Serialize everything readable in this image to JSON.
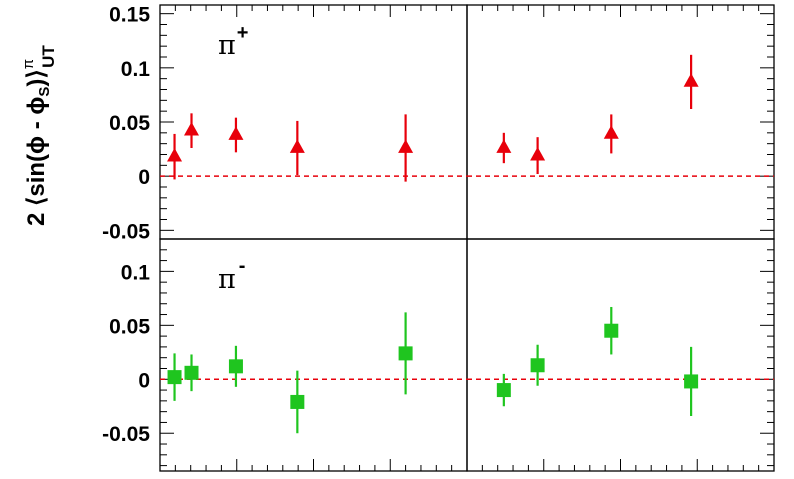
{
  "chart_data": {
    "type": "scatter",
    "ylabel": "2 ⟨sin(ϕ - ϕS)⟩πUT",
    "ylabel_parts": {
      "prefix": "2 ⟨sin(ϕ - ϕ",
      "sub": "S",
      "close": ")⟩",
      "sup": "π",
      "sub2": "UT"
    },
    "reference_line": {
      "y": 0,
      "style": "dashed",
      "color": "#e8000b"
    },
    "rows": [
      {
        "label": "π",
        "label_sup": "+",
        "marker": "triangle",
        "color": "#e8000b",
        "ylim": [
          -0.058,
          0.158
        ],
        "yticks": [
          {
            "value": 0.15,
            "label": "0.15"
          },
          {
            "value": 0.1,
            "label": "0.1"
          },
          {
            "value": 0.05,
            "label": "0.05"
          },
          {
            "value": 0,
            "label": "0"
          },
          {
            "value": -0.05,
            "label": "-0.05"
          }
        ]
      },
      {
        "label": "π",
        "label_sup": "-",
        "marker": "square",
        "color": "#1fc51f",
        "ylim": [
          -0.085,
          0.13
        ],
        "yticks": [
          {
            "value": 0.1,
            "label": "0.1"
          },
          {
            "value": 0.05,
            "label": "0.05"
          },
          {
            "value": 0,
            "label": "0"
          },
          {
            "value": -0.05,
            "label": "-0.05"
          }
        ]
      }
    ],
    "panels": [
      {
        "row": 0,
        "col": 0,
        "points": [
          {
            "x": 0.09,
            "y": 0.018,
            "err": 0.021
          },
          {
            "x": 0.195,
            "y": 0.042,
            "err": 0.016
          },
          {
            "x": 0.47,
            "y": 0.038,
            "err": 0.016
          },
          {
            "x": 0.85,
            "y": 0.026,
            "err": 0.025
          },
          {
            "x": 1.52,
            "y": 0.026,
            "err": 0.031
          }
        ]
      },
      {
        "row": 0,
        "col": 1,
        "points": [
          {
            "x": 0.12,
            "y": 0.026,
            "err": 0.014
          },
          {
            "x": 0.23,
            "y": 0.019,
            "err": 0.017
          },
          {
            "x": 0.47,
            "y": 0.039,
            "err": 0.018
          },
          {
            "x": 0.73,
            "y": 0.087,
            "err": 0.025
          }
        ]
      },
      {
        "row": 1,
        "col": 0,
        "points": [
          {
            "x": 0.09,
            "y": 0.002,
            "err": 0.022
          },
          {
            "x": 0.195,
            "y": 0.006,
            "err": 0.017
          },
          {
            "x": 0.47,
            "y": 0.012,
            "err": 0.019
          },
          {
            "x": 0.85,
            "y": -0.021,
            "err": 0.029
          },
          {
            "x": 1.52,
            "y": 0.024,
            "err": 0.038
          }
        ]
      },
      {
        "row": 1,
        "col": 1,
        "points": [
          {
            "x": 0.12,
            "y": -0.01,
            "err": 0.015
          },
          {
            "x": 0.23,
            "y": 0.013,
            "err": 0.019
          },
          {
            "x": 0.47,
            "y": 0.045,
            "err": 0.022
          },
          {
            "x": 0.73,
            "y": -0.002,
            "err": 0.032
          }
        ]
      }
    ],
    "columns": [
      {
        "xlim": [
          0,
          1.9
        ]
      },
      {
        "xlim": [
          0,
          1.0
        ]
      }
    ]
  }
}
